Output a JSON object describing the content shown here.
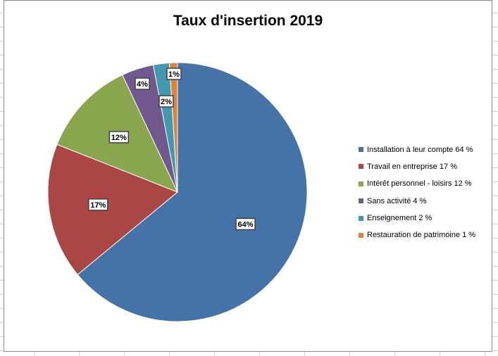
{
  "chart_data": {
    "type": "pie",
    "title": "Taux d'insertion 2019",
    "categories": [
      "Installation à leur compte 64 %",
      "Travail en entreprise 17 %",
      "Intérêt personnel - loisirs 12 %",
      "Sans activité 4 %",
      "Enseignement 2 %",
      "Restauration de patrimoine 1 %"
    ],
    "values": [
      64,
      17,
      12,
      4,
      2,
      1
    ],
    "data_labels": [
      "64%",
      "17%",
      "12%",
      "4%",
      "2%",
      "1%"
    ],
    "colors": [
      "#4572a7",
      "#aa4643",
      "#89a54e",
      "#71588f",
      "#4198af",
      "#db843d"
    ],
    "legend_position": "right"
  }
}
